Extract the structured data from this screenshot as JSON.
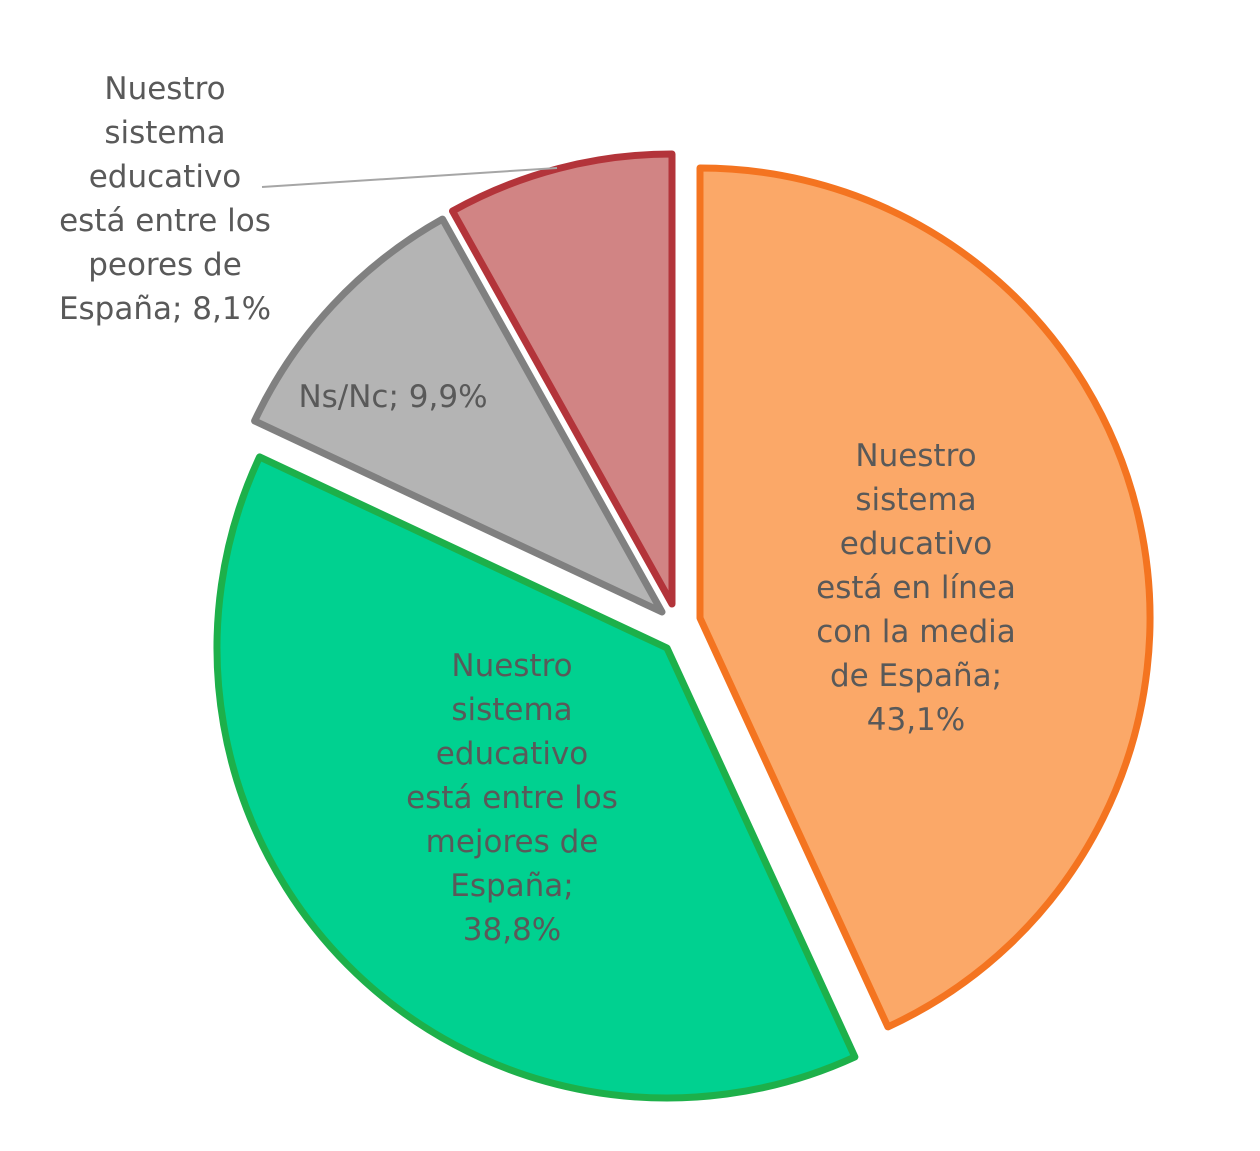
{
  "chart_data": {
    "type": "pie",
    "slices": [
      {
        "label": "Nuestro sistema educativo está en línea con la media de España",
        "value": 43.1,
        "value_label": "43,1%",
        "fill": "#FBA868",
        "stroke": "#F47420",
        "label_lines": [
          "Nuestro",
          "sistema",
          "educativo",
          "está en línea",
          "con la media",
          "de España;",
          "43,1%"
        ]
      },
      {
        "label": "Nuestro sistema educativo está entre los mejores de España",
        "value": 38.8,
        "value_label": "38,8%",
        "fill": "#00D190",
        "stroke": "#1DB04A",
        "label_lines": [
          "Nuestro",
          "sistema",
          "educativo",
          "está entre los",
          "mejores de",
          "España;",
          "38,8%"
        ]
      },
      {
        "label": "Ns/Nc",
        "value": 9.9,
        "value_label": "9,9%",
        "fill": "#B4B4B4",
        "stroke": "#808080",
        "label_lines": [
          "Ns/Nc; 9,9%"
        ]
      },
      {
        "label": "Nuestro sistema educativo está entre los peores de España",
        "value": 8.1,
        "value_label": "8,1%",
        "fill": "#D18484",
        "stroke": "#B3343A",
        "label_lines": [
          "Nuestro",
          "sistema",
          "educativo",
          "está entre los",
          "peores de",
          "España; 8,1%"
        ]
      }
    ],
    "start_angle": "12 o'clock",
    "direction": "clockwise",
    "exploded": true,
    "legend": "none"
  }
}
